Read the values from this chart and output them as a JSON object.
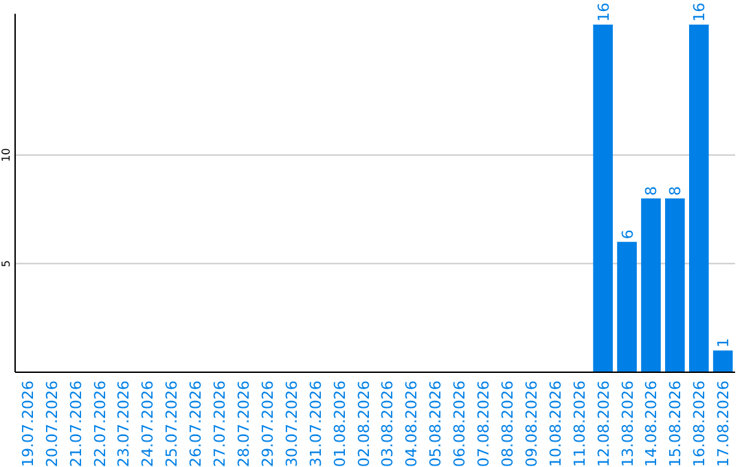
{
  "chart_data": {
    "type": "bar",
    "categories": [
      "19.07.2026",
      "20.07.2026",
      "21.07.2026",
      "22.07.2026",
      "23.07.2026",
      "24.07.2026",
      "25.07.2026",
      "26.07.2026",
      "27.07.2026",
      "28.07.2026",
      "29.07.2026",
      "30.07.2026",
      "31.07.2026",
      "01.08.2026",
      "02.08.2026",
      "03.08.2026",
      "04.08.2026",
      "05.08.2026",
      "06.08.2026",
      "07.08.2026",
      "08.08.2026",
      "09.08.2026",
      "10.08.2026",
      "11.08.2026",
      "12.08.2026",
      "13.08.2026",
      "14.08.2026",
      "15.08.2026",
      "16.08.2026",
      "17.08.2026"
    ],
    "values": [
      0,
      0,
      0,
      0,
      0,
      0,
      0,
      0,
      0,
      0,
      0,
      0,
      0,
      0,
      0,
      0,
      0,
      0,
      0,
      0,
      0,
      0,
      0,
      0,
      16,
      6,
      8,
      8,
      16,
      1
    ],
    "value_labels": [
      null,
      null,
      null,
      null,
      null,
      null,
      null,
      null,
      null,
      null,
      null,
      null,
      null,
      null,
      null,
      null,
      null,
      null,
      null,
      null,
      null,
      null,
      null,
      null,
      "16",
      "6",
      "8",
      "8",
      "16",
      "1"
    ],
    "color": "#0080e6",
    "ylim": [
      0,
      16.5
    ],
    "yticks": [
      5,
      10
    ],
    "grid": "y"
  }
}
